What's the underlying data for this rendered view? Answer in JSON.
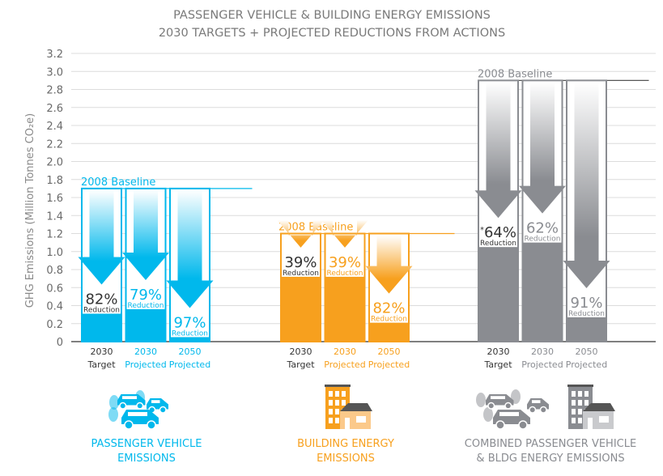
{
  "chart_data": {
    "type": "bar",
    "title": "PASSENGER VEHICLE & BUILDING ENERGY EMISSIONS",
    "subtitle": "2030 TARGETS + PROJECTED REDUCTIONS FROM ACTIONS",
    "ylabel": "GHG Emissions (Million Tonnes  CO₂e)",
    "ylim": [
      0,
      3.2
    ],
    "yticks": [
      "0",
      "0.2",
      "0.4",
      "0.6",
      "0.8",
      "1.0",
      "1.2",
      "1.4",
      "1.6",
      "1.8",
      "2.0",
      "2.2",
      "2.4",
      "2.6",
      "2.8",
      "3.0",
      "3.2"
    ],
    "grid": true,
    "reduction_word": "Reduction",
    "groups": [
      {
        "name": "PASSENGER VEHICLE EMISSIONS",
        "name_lines": [
          "PASSENGER VEHICLE",
          "EMISSIONS"
        ],
        "color": "#00b8ec",
        "baseline_label": "2008 Baseline",
        "baseline": 1.7,
        "bars": [
          {
            "year": "2030",
            "type": "Target",
            "value": 0.31,
            "reduction": "82%",
            "emphasis": true
          },
          {
            "year": "2030",
            "type": "Projected",
            "value": 0.36,
            "reduction": "79%",
            "emphasis": false
          },
          {
            "year": "2050",
            "type": "Projected",
            "value": 0.05,
            "reduction": "97%",
            "emphasis": false
          }
        ]
      },
      {
        "name": "BUILDING ENERGY EMISSIONS",
        "name_lines": [
          "BUILDING ENERGY",
          "EMISSIONS"
        ],
        "color": "#f7a01e",
        "baseline_label": "2008 Baseline",
        "baseline": 1.2,
        "bars": [
          {
            "year": "2030",
            "type": "Target",
            "value": 0.72,
            "reduction": "39%",
            "emphasis": true
          },
          {
            "year": "2030",
            "type": "Projected",
            "value": 0.72,
            "reduction": "39%",
            "emphasis": false
          },
          {
            "year": "2050",
            "type": "Projected",
            "value": 0.21,
            "reduction": "82%",
            "emphasis": false
          }
        ]
      },
      {
        "name": "COMBINED PASSENGER VEHICLE & BLDG ENERGY EMISSIONS",
        "name_lines": [
          "COMBINED PASSENGER VEHICLE",
          "& BLDG ENERGY EMISSIONS"
        ],
        "color": "#8a8c91",
        "baseline_label": "2008 Baseline",
        "baseline": 2.9,
        "bars": [
          {
            "year": "2030",
            "type": "Target",
            "value": 1.05,
            "reduction": "64%",
            "emphasis": true,
            "note": "*"
          },
          {
            "year": "2030",
            "type": "Projected",
            "value": 1.1,
            "reduction": "62%",
            "emphasis": false
          },
          {
            "year": "2050",
            "type": "Projected",
            "value": 0.27,
            "reduction": "91%",
            "emphasis": false
          }
        ]
      }
    ]
  },
  "icons": [
    "cars-icon",
    "buildings-icon",
    "cars-and-buildings-icon"
  ]
}
